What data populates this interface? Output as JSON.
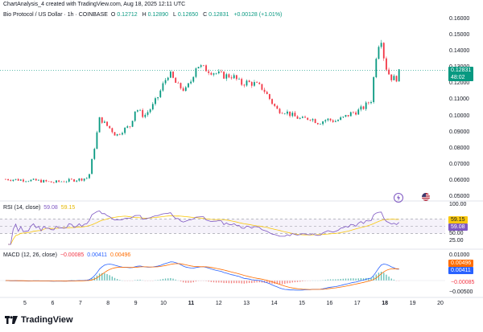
{
  "credit": "ChartAnalysis_4 created with TradingView.com, Aug 18, 2025 12:11 UTC",
  "main": {
    "symbol": "Bio Protocol / US Dollar · 1h · COINBASE",
    "o_label": "O",
    "o_value": "0.12712",
    "h_label": "H",
    "h_value": "0.12890",
    "l_label": "L",
    "l_value": "0.12650",
    "c_label": "C",
    "c_value": "0.12831",
    "change": "+0.00128 (+1.01%)",
    "price_ticks": [
      "0.16000",
      "0.15000",
      "0.14000",
      "0.13000",
      "0.12000",
      "0.11000",
      "0.10000",
      "0.09000",
      "0.08000",
      "0.07000",
      "0.06000",
      "0.05000"
    ],
    "last_price": "0.12831",
    "countdown": "48:02",
    "icon_lightning": "lightning-icon",
    "icon_flag": "us-flag-icon"
  },
  "rsi": {
    "label": "RSI (14, close)",
    "value1": "59.08",
    "value2": "59.15",
    "ticks": [
      "100.00",
      "50.00",
      "25.00"
    ],
    "tag1": "59.15",
    "tag2": "59.08"
  },
  "macd": {
    "label": "MACD (12, 26, close)",
    "hist": "−0.00085",
    "macd": "0.00411",
    "signal": "0.00496",
    "ticks": [
      "0.01000",
      "−0.00500"
    ],
    "tag_signal": "0.00496",
    "tag_macd": "0.00411",
    "tag_hist": "−0.00085"
  },
  "time_axis": [
    "5",
    "6",
    "7",
    "8",
    "9",
    "10",
    "11",
    "12",
    "13",
    "14",
    "15",
    "16",
    "17",
    "18",
    "19",
    "20"
  ],
  "time_bold": [
    "11",
    "18"
  ],
  "brand": "TradingView",
  "colors": {
    "up": "#089981",
    "down": "#f23645",
    "rsi": "#7e57c2",
    "macd": "#2962ff",
    "signal": "#ff6d00"
  },
  "chart_data": {
    "type": "candlestick",
    "price_range": [
      0.05,
      0.16
    ],
    "x_days": [
      5,
      20
    ],
    "close_path": [
      [
        4.3,
        0.061
      ],
      [
        5.0,
        0.0605
      ],
      [
        5.5,
        0.06
      ],
      [
        6.0,
        0.059
      ],
      [
        6.5,
        0.06
      ],
      [
        7.0,
        0.061
      ],
      [
        7.3,
        0.062
      ],
      [
        7.5,
        0.08
      ],
      [
        7.7,
        0.099
      ],
      [
        7.9,
        0.095
      ],
      [
        8.1,
        0.092
      ],
      [
        8.3,
        0.088
      ],
      [
        8.5,
        0.091
      ],
      [
        8.8,
        0.094
      ],
      [
        9.0,
        0.105
      ],
      [
        9.3,
        0.1
      ],
      [
        9.6,
        0.106
      ],
      [
        9.8,
        0.112
      ],
      [
        10.0,
        0.12
      ],
      [
        10.2,
        0.127
      ],
      [
        10.5,
        0.119
      ],
      [
        10.8,
        0.116
      ],
      [
        11.0,
        0.122
      ],
      [
        11.2,
        0.132
      ],
      [
        11.4,
        0.13
      ],
      [
        11.7,
        0.128
      ],
      [
        12.0,
        0.126
      ],
      [
        12.2,
        0.125
      ],
      [
        12.5,
        0.125
      ],
      [
        12.8,
        0.12
      ],
      [
        13.0,
        0.121
      ],
      [
        13.3,
        0.12
      ],
      [
        13.6,
        0.117
      ],
      [
        13.9,
        0.109
      ],
      [
        14.1,
        0.104
      ],
      [
        14.4,
        0.103
      ],
      [
        14.7,
        0.1
      ],
      [
        15.0,
        0.098
      ],
      [
        15.3,
        0.099
      ],
      [
        15.6,
        0.096
      ],
      [
        15.9,
        0.098
      ],
      [
        16.2,
        0.097
      ],
      [
        16.5,
        0.099
      ],
      [
        16.8,
        0.102
      ],
      [
        17.0,
        0.103
      ],
      [
        17.2,
        0.105
      ],
      [
        17.5,
        0.11
      ],
      [
        17.7,
        0.14
      ],
      [
        17.85,
        0.15
      ],
      [
        18.0,
        0.132
      ],
      [
        18.2,
        0.124
      ],
      [
        18.4,
        0.123
      ],
      [
        18.55,
        0.1283
      ]
    ]
  }
}
